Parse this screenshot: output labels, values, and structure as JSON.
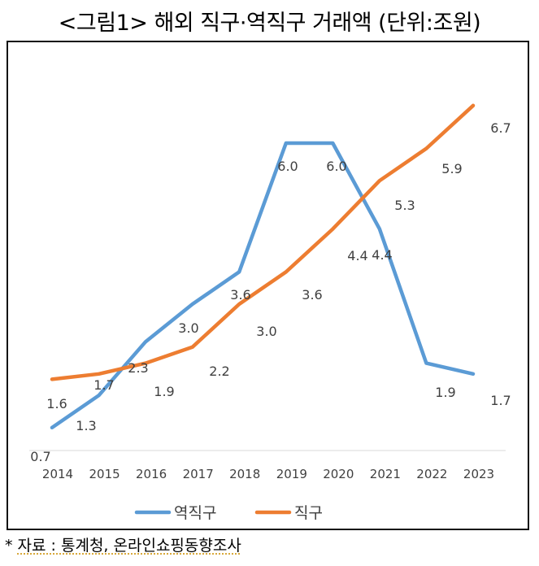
{
  "title": "<그림1> 해외 직구·역직구 거래액 (단위:조원)",
  "source": {
    "marker": "*",
    "text": "자료 : 통계청, 온라인쇼핑동향조사"
  },
  "chart_data": {
    "type": "line",
    "title": "<그림1> 해외 직구·역직구 거래액 (단위:조원)",
    "xlabel": "",
    "ylabel": "",
    "categories": [
      "2014",
      "2015",
      "2016",
      "2017",
      "2018",
      "2019",
      "2020",
      "2021",
      "2022",
      "2023"
    ],
    "ylim": [
      0,
      7
    ],
    "grid": false,
    "legend": "bottom",
    "series": [
      {
        "name": "역직구",
        "color": "#5b9bd5",
        "values": [
          0.7,
          1.3,
          2.3,
          3.0,
          3.6,
          6.0,
          6.0,
          4.4,
          1.9,
          1.7
        ],
        "labels": [
          "0.7",
          "1.3",
          "2.3",
          "3.0",
          "3.6",
          "6.0",
          "6.0",
          "4.4",
          "1.9",
          "1.7"
        ]
      },
      {
        "name": "직구",
        "color": "#ed7d31",
        "values": [
          1.6,
          1.7,
          1.9,
          2.2,
          3.0,
          3.6,
          4.4,
          5.3,
          5.9,
          6.7
        ],
        "labels": [
          "1.6",
          "1.7",
          "1.9",
          "2.2",
          "3.0",
          "3.6",
          "4.4",
          "5.3",
          "5.9",
          "6.7"
        ]
      }
    ]
  }
}
